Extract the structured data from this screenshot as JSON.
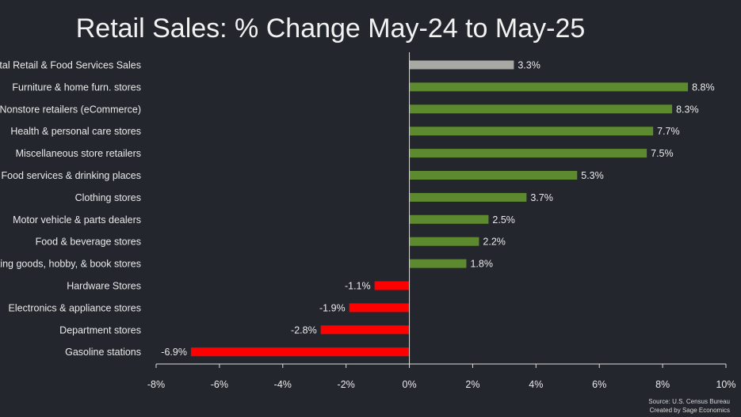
{
  "chart_data": {
    "type": "bar",
    "orientation": "horizontal",
    "title": "Retail Sales: % Change May-24 to May-25",
    "categories": [
      "Total Retail & Food Services Sales",
      "Furniture & home furn. stores",
      "Nonstore retailers (eCommerce)",
      "Health & personal care stores",
      "Miscellaneous store retailers",
      "Food services & drinking places",
      "Clothing stores",
      "Motor vehicle & parts dealers",
      "Food & beverage stores",
      "Sporting goods, hobby, & book stores",
      "Hardware Stores",
      "Electronics & appliance stores",
      "Department stores",
      "Gasoline stations"
    ],
    "values": [
      3.3,
      8.8,
      8.3,
      7.7,
      7.5,
      5.3,
      3.7,
      2.5,
      2.2,
      1.8,
      -1.1,
      -1.9,
      -2.8,
      -6.9
    ],
    "value_labels": [
      "3.3%",
      "8.8%",
      "8.3%",
      "7.7%",
      "7.5%",
      "5.3%",
      "3.7%",
      "2.5%",
      "2.2%",
      "1.8%",
      "-1.1%",
      "-1.9%",
      "-2.8%",
      "-6.9%"
    ],
    "xlim": [
      -8,
      10
    ],
    "xticks": [
      -8,
      -6,
      -4,
      -2,
      0,
      2,
      4,
      6,
      8,
      10
    ],
    "xtick_labels": [
      "-8%",
      "-6%",
      "-4%",
      "-2%",
      "0%",
      "2%",
      "4%",
      "6%",
      "8%",
      "10%"
    ],
    "grid": false,
    "colors": {
      "total": "#a9a9a4",
      "positive": "#5e8a2f",
      "negative": "#ff0000",
      "axis": "#dcdcdc",
      "background": "#23262d"
    }
  },
  "source": {
    "line1": "Source: U.S. Census Bureau",
    "line2": "Created by Sage Economics"
  }
}
